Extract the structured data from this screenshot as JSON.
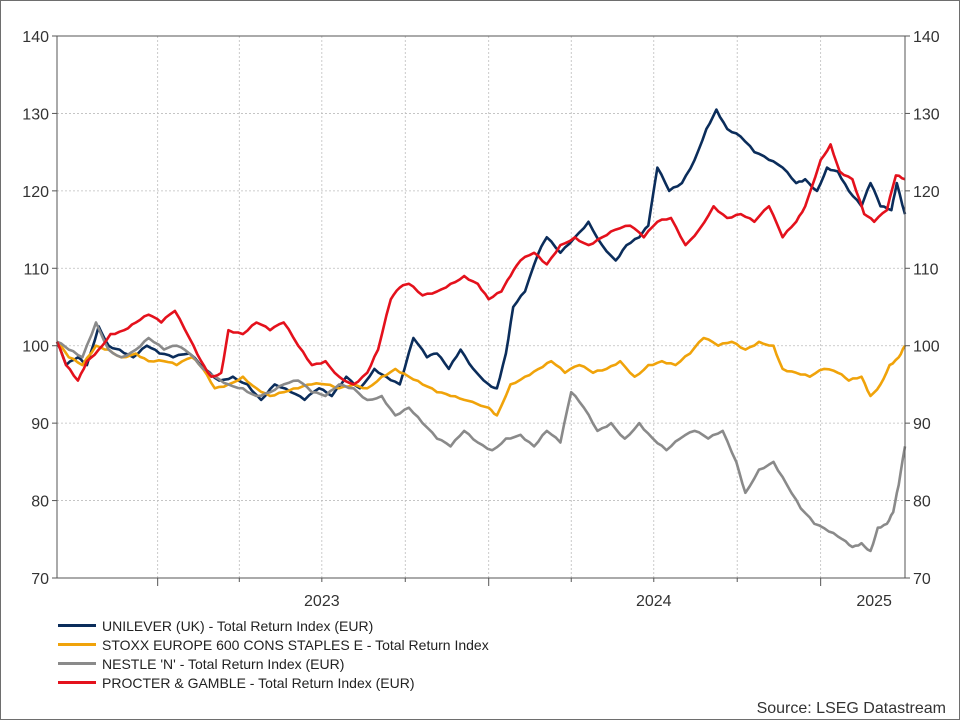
{
  "source_label": "Source: LSEG Datastream",
  "chart_data": {
    "type": "line",
    "title": "",
    "xlabel": "",
    "ylabel": "",
    "x_range": [
      "2022-09-12",
      "2025-04-04"
    ],
    "ylim": [
      70,
      140
    ],
    "y_ticks": [
      70,
      80,
      90,
      100,
      110,
      120,
      130,
      140
    ],
    "x_tick_labels": [
      {
        "label": "2023",
        "at": "2023-07-01"
      },
      {
        "label": "2024",
        "at": "2024-07-01"
      },
      {
        "label": "2025",
        "at": "2025-03-01"
      }
    ],
    "x_year_boundaries": [
      "2023-01-01",
      "2024-01-01",
      "2025-01-01"
    ],
    "x_quarter_marks": [
      "2023-04-01",
      "2023-07-01",
      "2023-10-01",
      "2024-04-01",
      "2024-07-01",
      "2024-10-01"
    ],
    "grid": true,
    "y_axis_both_sides": true,
    "legend_position": "bottom-left",
    "series": [
      {
        "name": "UNILEVER (UK) - Total Return Index (EUR)",
        "color": "#0b2d5b",
        "points": [
          [
            "2022-09-12",
            100.5
          ],
          [
            "2022-09-22",
            97.5
          ],
          [
            "2022-10-05",
            98.5
          ],
          [
            "2022-10-15",
            97.5
          ],
          [
            "2022-10-28",
            102.5
          ],
          [
            "2022-11-08",
            100
          ],
          [
            "2022-11-20",
            99.5
          ],
          [
            "2022-12-05",
            98.5
          ],
          [
            "2022-12-20",
            100
          ],
          [
            "2023-01-03",
            99
          ],
          [
            "2023-01-18",
            98.5
          ],
          [
            "2023-02-05",
            99
          ],
          [
            "2023-02-22",
            97
          ],
          [
            "2023-03-10",
            95.5
          ],
          [
            "2023-03-25",
            96
          ],
          [
            "2023-04-10",
            95
          ],
          [
            "2023-04-25",
            93
          ],
          [
            "2023-05-10",
            95
          ],
          [
            "2023-05-28",
            94
          ],
          [
            "2023-06-12",
            93
          ],
          [
            "2023-06-28",
            94.5
          ],
          [
            "2023-07-12",
            93.5
          ],
          [
            "2023-07-28",
            96
          ],
          [
            "2023-08-12",
            94.5
          ],
          [
            "2023-08-28",
            97
          ],
          [
            "2023-09-10",
            96
          ],
          [
            "2023-09-25",
            95
          ],
          [
            "2023-10-10",
            101
          ],
          [
            "2023-10-25",
            98.5
          ],
          [
            "2023-11-05",
            99
          ],
          [
            "2023-11-18",
            97
          ],
          [
            "2023-12-01",
            99.5
          ],
          [
            "2023-12-15",
            97
          ],
          [
            "2024-01-01",
            95
          ],
          [
            "2024-01-10",
            94.5
          ],
          [
            "2024-01-20",
            99
          ],
          [
            "2024-01-28",
            105
          ],
          [
            "2024-02-10",
            107
          ],
          [
            "2024-02-25",
            112
          ],
          [
            "2024-03-05",
            114
          ],
          [
            "2024-03-20",
            112
          ],
          [
            "2024-04-05",
            114
          ],
          [
            "2024-04-20",
            116
          ],
          [
            "2024-05-05",
            113
          ],
          [
            "2024-05-20",
            111
          ],
          [
            "2024-06-01",
            113
          ],
          [
            "2024-06-15",
            114
          ],
          [
            "2024-06-25",
            115.5
          ],
          [
            "2024-07-05",
            123
          ],
          [
            "2024-07-18",
            120
          ],
          [
            "2024-08-01",
            121
          ],
          [
            "2024-08-15",
            124
          ],
          [
            "2024-08-28",
            128
          ],
          [
            "2024-09-08",
            130.5
          ],
          [
            "2024-09-20",
            128
          ],
          [
            "2024-10-05",
            127
          ],
          [
            "2024-10-20",
            125
          ],
          [
            "2024-11-05",
            124
          ],
          [
            "2024-11-20",
            123
          ],
          [
            "2024-12-05",
            121
          ],
          [
            "2024-12-15",
            121.5
          ],
          [
            "2024-12-28",
            120
          ],
          [
            "2025-01-08",
            123
          ],
          [
            "2025-01-20",
            122.5
          ],
          [
            "2025-02-01",
            120
          ],
          [
            "2025-02-15",
            118
          ],
          [
            "2025-02-25",
            121
          ],
          [
            "2025-03-08",
            118
          ],
          [
            "2025-03-20",
            117.5
          ],
          [
            "2025-03-26",
            121
          ],
          [
            "2025-04-04",
            117
          ]
        ]
      },
      {
        "name": "STOXX EUROPE 600 CONS STAPLES E - Total Return Index",
        "color": "#f0a30a",
        "points": [
          [
            "2022-09-12",
            100.5
          ],
          [
            "2022-09-25",
            98.5
          ],
          [
            "2022-10-10",
            97.5
          ],
          [
            "2022-10-25",
            100
          ],
          [
            "2022-11-08",
            99.5
          ],
          [
            "2022-11-22",
            98.5
          ],
          [
            "2022-12-08",
            99
          ],
          [
            "2022-12-22",
            98
          ],
          [
            "2023-01-08",
            98
          ],
          [
            "2023-01-22",
            97.5
          ],
          [
            "2023-02-08",
            98.5
          ],
          [
            "2023-02-20",
            97
          ],
          [
            "2023-03-05",
            94.5
          ],
          [
            "2023-03-20",
            95
          ],
          [
            "2023-04-05",
            96
          ],
          [
            "2023-04-20",
            94.5
          ],
          [
            "2023-05-05",
            93.5
          ],
          [
            "2023-05-20",
            94
          ],
          [
            "2023-06-05",
            94.5
          ],
          [
            "2023-06-20",
            95
          ],
          [
            "2023-07-05",
            95
          ],
          [
            "2023-07-20",
            94.5
          ],
          [
            "2023-08-05",
            95
          ],
          [
            "2023-08-20",
            94.5
          ],
          [
            "2023-09-05",
            96
          ],
          [
            "2023-09-20",
            97
          ],
          [
            "2023-10-05",
            96
          ],
          [
            "2023-10-20",
            95
          ],
          [
            "2023-11-05",
            94
          ],
          [
            "2023-11-20",
            93.5
          ],
          [
            "2023-12-05",
            93
          ],
          [
            "2024-01-01",
            92
          ],
          [
            "2024-01-10",
            91
          ],
          [
            "2024-01-25",
            95
          ],
          [
            "2024-02-10",
            96
          ],
          [
            "2024-02-25",
            97
          ],
          [
            "2024-03-10",
            98
          ],
          [
            "2024-03-25",
            96.5
          ],
          [
            "2024-04-10",
            97.5
          ],
          [
            "2024-04-25",
            96.5
          ],
          [
            "2024-05-10",
            97
          ],
          [
            "2024-05-25",
            98
          ],
          [
            "2024-06-10",
            96
          ],
          [
            "2024-06-25",
            97.5
          ],
          [
            "2024-07-10",
            98
          ],
          [
            "2024-07-25",
            97.5
          ],
          [
            "2024-08-10",
            99
          ],
          [
            "2024-08-25",
            101
          ],
          [
            "2024-09-10",
            100
          ],
          [
            "2024-09-25",
            100.5
          ],
          [
            "2024-10-10",
            99.5
          ],
          [
            "2024-10-25",
            100.5
          ],
          [
            "2024-11-10",
            100
          ],
          [
            "2024-11-20",
            97
          ],
          [
            "2024-12-05",
            96.5
          ],
          [
            "2024-12-20",
            96
          ],
          [
            "2025-01-05",
            97
          ],
          [
            "2025-01-20",
            96.5
          ],
          [
            "2025-02-01",
            95.5
          ],
          [
            "2025-02-15",
            96
          ],
          [
            "2025-02-25",
            93.5
          ],
          [
            "2025-03-08",
            95
          ],
          [
            "2025-03-18",
            97.5
          ],
          [
            "2025-03-28",
            98.5
          ],
          [
            "2025-04-04",
            100
          ]
        ]
      },
      {
        "name": "NESTLE 'N' - Total Return Index (EUR)",
        "color": "#8a8a8a",
        "points": [
          [
            "2022-09-12",
            100.5
          ],
          [
            "2022-09-25",
            99.5
          ],
          [
            "2022-10-10",
            98.5
          ],
          [
            "2022-10-25",
            103
          ],
          [
            "2022-11-08",
            99.5
          ],
          [
            "2022-11-22",
            98.5
          ],
          [
            "2022-12-08",
            99.5
          ],
          [
            "2022-12-22",
            101
          ],
          [
            "2023-01-08",
            99.5
          ],
          [
            "2023-01-22",
            100
          ],
          [
            "2023-02-05",
            99
          ],
          [
            "2023-02-20",
            97
          ],
          [
            "2023-03-05",
            96
          ],
          [
            "2023-03-20",
            95
          ],
          [
            "2023-04-05",
            94.5
          ],
          [
            "2023-04-20",
            93.5
          ],
          [
            "2023-05-05",
            94
          ],
          [
            "2023-05-20",
            95
          ],
          [
            "2023-06-05",
            95.5
          ],
          [
            "2023-06-20",
            94
          ],
          [
            "2023-07-05",
            93.5
          ],
          [
            "2023-07-20",
            95
          ],
          [
            "2023-08-05",
            94.5
          ],
          [
            "2023-08-20",
            93
          ],
          [
            "2023-09-05",
            93.5
          ],
          [
            "2023-09-20",
            91
          ],
          [
            "2023-10-05",
            92
          ],
          [
            "2023-10-20",
            90
          ],
          [
            "2023-11-05",
            88
          ],
          [
            "2023-11-20",
            87
          ],
          [
            "2023-12-05",
            89
          ],
          [
            "2023-12-20",
            87.5
          ],
          [
            "2024-01-05",
            86.5
          ],
          [
            "2024-01-20",
            88
          ],
          [
            "2024-02-05",
            88.5
          ],
          [
            "2024-02-20",
            87
          ],
          [
            "2024-03-05",
            89
          ],
          [
            "2024-03-20",
            87.5
          ],
          [
            "2024-04-01",
            94
          ],
          [
            "2024-04-15",
            92
          ],
          [
            "2024-04-30",
            89
          ],
          [
            "2024-05-15",
            90
          ],
          [
            "2024-05-30",
            88
          ],
          [
            "2024-06-15",
            90
          ],
          [
            "2024-06-30",
            88
          ],
          [
            "2024-07-15",
            86.5
          ],
          [
            "2024-07-30",
            88
          ],
          [
            "2024-08-15",
            89
          ],
          [
            "2024-08-30",
            88
          ],
          [
            "2024-09-15",
            89
          ],
          [
            "2024-09-30",
            85
          ],
          [
            "2024-10-10",
            81
          ],
          [
            "2024-10-25",
            84
          ],
          [
            "2024-11-10",
            85
          ],
          [
            "2024-11-25",
            82
          ],
          [
            "2024-12-10",
            79
          ],
          [
            "2024-12-25",
            77
          ],
          [
            "2025-01-10",
            76
          ],
          [
            "2025-01-25",
            75
          ],
          [
            "2025-02-05",
            74
          ],
          [
            "2025-02-15",
            74.5
          ],
          [
            "2025-02-25",
            73.5
          ],
          [
            "2025-03-05",
            76.5
          ],
          [
            "2025-03-15",
            77
          ],
          [
            "2025-03-22",
            78.5
          ],
          [
            "2025-03-28",
            82
          ],
          [
            "2025-04-04",
            87
          ]
        ]
      },
      {
        "name": "PROCTER & GAMBLE - Total Return Index (EUR)",
        "color": "#e4111c",
        "points": [
          [
            "2022-09-12",
            100.5
          ],
          [
            "2022-09-22",
            97.5
          ],
          [
            "2022-10-05",
            95.5
          ],
          [
            "2022-10-15",
            98
          ],
          [
            "2022-10-28",
            99.5
          ],
          [
            "2022-11-10",
            101.5
          ],
          [
            "2022-11-25",
            102
          ],
          [
            "2022-12-08",
            103
          ],
          [
            "2022-12-22",
            104
          ],
          [
            "2023-01-05",
            103
          ],
          [
            "2023-01-20",
            104.5
          ],
          [
            "2023-02-05",
            101
          ],
          [
            "2023-02-18",
            98
          ],
          [
            "2023-03-01",
            96
          ],
          [
            "2023-03-12",
            96.5
          ],
          [
            "2023-03-20",
            102
          ],
          [
            "2023-04-05",
            101.5
          ],
          [
            "2023-04-20",
            103
          ],
          [
            "2023-05-05",
            102
          ],
          [
            "2023-05-20",
            103
          ],
          [
            "2023-06-05",
            100
          ],
          [
            "2023-06-20",
            97.5
          ],
          [
            "2023-07-05",
            98
          ],
          [
            "2023-07-20",
            96
          ],
          [
            "2023-08-05",
            95
          ],
          [
            "2023-08-20",
            96.5
          ],
          [
            "2023-09-01",
            99.5
          ],
          [
            "2023-09-15",
            106
          ],
          [
            "2023-09-25",
            107.5
          ],
          [
            "2023-10-05",
            108
          ],
          [
            "2023-10-20",
            106.5
          ],
          [
            "2023-11-05",
            107
          ],
          [
            "2023-11-20",
            108
          ],
          [
            "2023-12-05",
            109
          ],
          [
            "2023-12-20",
            108
          ],
          [
            "2024-01-01",
            106
          ],
          [
            "2024-01-15",
            107
          ],
          [
            "2024-01-25",
            109
          ],
          [
            "2024-02-05",
            111
          ],
          [
            "2024-02-20",
            112
          ],
          [
            "2024-03-05",
            110.5
          ],
          [
            "2024-03-20",
            113
          ],
          [
            "2024-04-05",
            114
          ],
          [
            "2024-04-20",
            113
          ],
          [
            "2024-05-05",
            114
          ],
          [
            "2024-05-20",
            115
          ],
          [
            "2024-06-05",
            115.5
          ],
          [
            "2024-06-20",
            114
          ],
          [
            "2024-07-05",
            116
          ],
          [
            "2024-07-20",
            116.5
          ],
          [
            "2024-08-05",
            113
          ],
          [
            "2024-08-20",
            115
          ],
          [
            "2024-09-05",
            118
          ],
          [
            "2024-09-20",
            116.5
          ],
          [
            "2024-10-05",
            117
          ],
          [
            "2024-10-20",
            116
          ],
          [
            "2024-11-05",
            118
          ],
          [
            "2024-11-20",
            114
          ],
          [
            "2024-12-05",
            116
          ],
          [
            "2024-12-15",
            118
          ],
          [
            "2025-01-01",
            124
          ],
          [
            "2025-01-12",
            126
          ],
          [
            "2025-01-22",
            122.5
          ],
          [
            "2025-02-05",
            121.5
          ],
          [
            "2025-02-18",
            117
          ],
          [
            "2025-03-01",
            116
          ],
          [
            "2025-03-15",
            117.5
          ],
          [
            "2025-03-25",
            122
          ],
          [
            "2025-04-04",
            121.5
          ]
        ]
      }
    ]
  }
}
